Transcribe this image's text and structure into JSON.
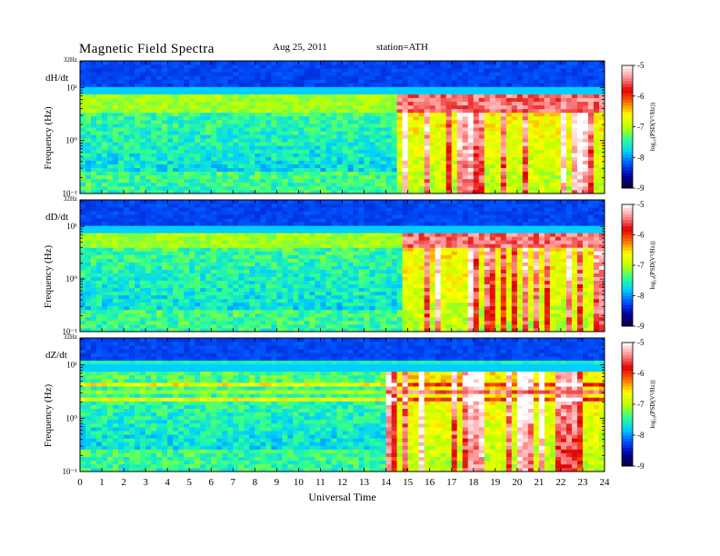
{
  "header": {
    "title": "Magnetic  Field  Spectra",
    "date": "Aug 25, 2011",
    "station": "station=ATH"
  },
  "colors": {
    "colormap": [
      "#0a0030",
      "#0000a0",
      "#0050ff",
      "#00d0ff",
      "#30ff90",
      "#c0ff00",
      "#ffff00",
      "#ff7000",
      "#e00000",
      "#ff9090",
      "#ffffff"
    ]
  },
  "chart_data": [
    {
      "type": "heatmap",
      "panel_label": "dH/dt",
      "ylabel": "Frequency (Hz)",
      "xlabel": "",
      "y_scale": "log",
      "y_ticks": [
        "10⁻¹",
        "10⁰",
        "10¹"
      ],
      "y_top_label": "32Hz",
      "ylim_hz": [
        0.1,
        32
      ],
      "x_ticks": [],
      "xlim_hours": [
        0,
        24
      ],
      "colorbar_label": "log₁₀(PSD(V²/Hz))",
      "colorbar_ticks": [
        "-5",
        "-6",
        "-7",
        "-8",
        "-9"
      ],
      "clim": [
        -9,
        -5
      ],
      "features": {
        "high_activity_onset_hours": 14.5,
        "strong_band_hz": [
          3.5,
          7.5
        ],
        "narrow_lines_hz": []
      }
    },
    {
      "type": "heatmap",
      "panel_label": "dD/dt",
      "ylabel": "Frequency (Hz)",
      "xlabel": "",
      "y_scale": "log",
      "y_ticks": [
        "10⁻¹",
        "10⁰",
        "10¹"
      ],
      "y_top_label": "32Hz",
      "ylim_hz": [
        0.1,
        32
      ],
      "x_ticks": [],
      "xlim_hours": [
        0,
        24
      ],
      "colorbar_label": "log₁₀(PSD(V²/Hz))",
      "colorbar_ticks": [
        "-5",
        "-6",
        "-7",
        "-8",
        "-9"
      ],
      "clim": [
        -9,
        -5
      ],
      "features": {
        "high_activity_onset_hours": 14.8,
        "strong_band_hz": [
          3.8,
          7.5
        ],
        "narrow_lines_hz": []
      }
    },
    {
      "type": "heatmap",
      "panel_label": "dZ/dt",
      "ylabel": "Frequency (Hz)",
      "xlabel": "Universal Time",
      "y_scale": "log",
      "y_ticks": [
        "10⁻¹",
        "10⁰",
        "10¹"
      ],
      "y_top_label": "32Hz",
      "ylim_hz": [
        0.1,
        32
      ],
      "x_ticks": [
        "0",
        "1",
        "2",
        "3",
        "4",
        "5",
        "6",
        "7",
        "8",
        "9",
        "10",
        "11",
        "12",
        "13",
        "14",
        "15",
        "16",
        "17",
        "18",
        "19",
        "20",
        "21",
        "22",
        "23",
        "24"
      ],
      "xlim_hours": [
        0,
        24
      ],
      "colorbar_label": "log₁₀(PSD(V²/Hz))",
      "colorbar_ticks": [
        "-5",
        "-6",
        "-7",
        "-8",
        "-9"
      ],
      "clim": [
        -9,
        -5
      ],
      "features": {
        "high_activity_onset_hours": 14.0,
        "strong_band_hz": [
          2.9,
          3.6
        ],
        "narrow_lines_hz": [
          2.4,
          4.2,
          12
        ]
      }
    }
  ]
}
